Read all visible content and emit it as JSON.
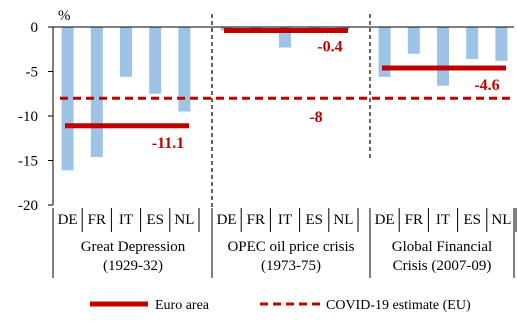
{
  "chart_data": {
    "type": "bar",
    "ylabel_unit": "%",
    "ylim": [
      -20,
      0
    ],
    "yticks": [
      "0",
      "-5",
      "-10",
      "-15",
      "-20"
    ],
    "colors": {
      "bars": "#9dc3e6",
      "euro_area_line": "#c00000",
      "covid_line": "#c00000",
      "value_labels": "#c00000",
      "axis": "#000000",
      "separator": "#000000"
    },
    "groups": [
      {
        "name": "Great Depression\n(1929-32)",
        "categories": [
          "DE",
          "FR",
          "IT",
          "ES",
          "NL"
        ],
        "values": [
          -16.1,
          -14.6,
          -5.6,
          -7.5,
          -9.5
        ],
        "euro_area": -11.1,
        "euro_area_label": "-11.1"
      },
      {
        "name": "OPEC oil price crisis\n(1973-75)",
        "categories": [
          "DE",
          "FR",
          "IT",
          "ES",
          "NL"
        ],
        "values": [
          -0.4,
          -0.3,
          -2.3,
          -0.1,
          -0.3
        ],
        "euro_area": -0.4,
        "euro_area_label": "-0.4"
      },
      {
        "name": "Global Financial\nCrisis (2007-09)",
        "categories": [
          "DE",
          "FR",
          "IT",
          "ES",
          "NL"
        ],
        "values": [
          -5.6,
          -3.0,
          -6.6,
          -3.6,
          -3.8
        ],
        "euro_area": -4.6,
        "euro_area_label": "-4.6"
      }
    ],
    "covid_estimate": -8,
    "covid_label": "-8",
    "legend": {
      "placement": "bottom",
      "items": [
        {
          "name": "Euro area",
          "style": "solid"
        },
        {
          "name": "COVID-19 estimate (EU)",
          "style": "dashed"
        }
      ]
    }
  }
}
